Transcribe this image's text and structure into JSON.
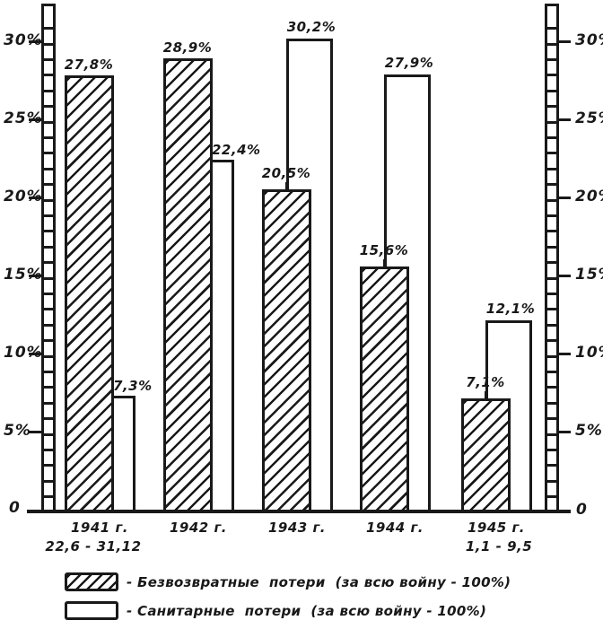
{
  "figure": {
    "background": "#ffffff",
    "ink": "#191919"
  },
  "y_axis": {
    "tick_labels": [
      "30%",
      "25%",
      "20%",
      "15%",
      "10%",
      "5%"
    ],
    "tick_percents": [
      30,
      25,
      20,
      15,
      10,
      5
    ],
    "zero_label_left": "0",
    "zero_label_right": "0",
    "minor_step_percent": 1,
    "major_step_percent": 5
  },
  "chart_data": {
    "type": "bar",
    "title": "",
    "categories": [
      "1941 г.",
      "1942 г.",
      "1943 г.",
      "1944 г.",
      "1945 г."
    ],
    "category_sublabels": [
      "22,6 - 31,12",
      "",
      "",
      "",
      "1,1 - 9,5"
    ],
    "series": [
      {
        "name": "Безвозвратные потери (за всю войну - 100%)",
        "style": "hatched",
        "values": [
          27.8,
          28.9,
          20.5,
          15.6,
          7.1
        ],
        "labels": [
          "27,8%",
          "28,9%",
          "20,5%",
          "15,6%",
          "7,1%"
        ]
      },
      {
        "name": "Санитарные потери (за всю войну - 100%)",
        "style": "white",
        "values": [
          7.3,
          22.4,
          30.2,
          27.9,
          12.1
        ],
        "labels": [
          "7,3%",
          "22,4%",
          "30,2%",
          "27,9%",
          "12,1%"
        ]
      }
    ],
    "xlabel": "",
    "ylabel": "%",
    "ylim": [
      0,
      32
    ],
    "grid": false,
    "legend_position": "bottom"
  },
  "legend": {
    "items": [
      {
        "swatch": "hatched",
        "label": "- Безвозвратные  потери  (за всю войну - 100%)"
      },
      {
        "swatch": "white",
        "label": "- Санитарные  потери  (за всю войну - 100%)"
      }
    ]
  }
}
